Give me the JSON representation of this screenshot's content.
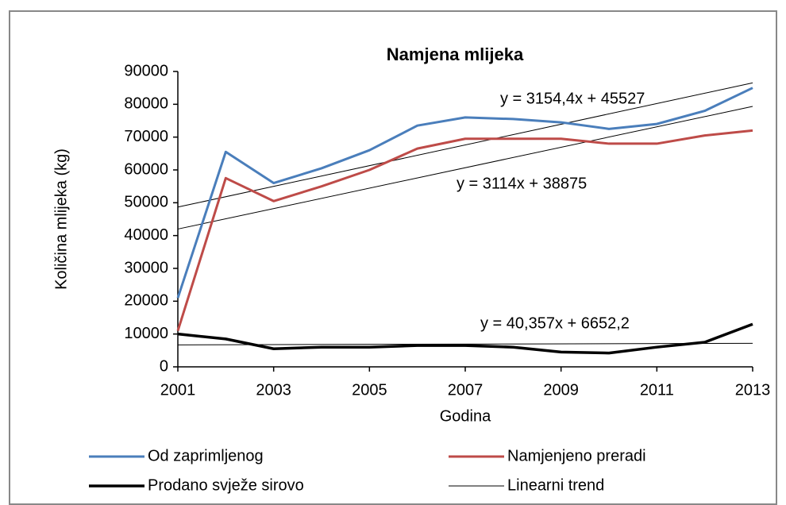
{
  "chart_data": {
    "type": "line",
    "title": "Namjena mlijeka",
    "y_label": "Količina mlijeka (kg)",
    "x_label": "Godina",
    "x": [
      2001,
      2002,
      2003,
      2004,
      2005,
      2006,
      2007,
      2008,
      2009,
      2010,
      2011,
      2012,
      2013
    ],
    "xlim": [
      2001,
      2013
    ],
    "xticks": [
      2001,
      2003,
      2005,
      2007,
      2009,
      2011,
      2013
    ],
    "ylim": [
      0,
      90000
    ],
    "yticks": [
      0,
      10000,
      20000,
      30000,
      40000,
      50000,
      60000,
      70000,
      80000,
      90000
    ],
    "series": [
      {
        "name": "Od zaprimljenog",
        "color": "#4a7ebb",
        "width": 3,
        "values": [
          21000,
          65500,
          56000,
          60500,
          66000,
          73500,
          76000,
          75500,
          74500,
          72500,
          74000,
          78000,
          85000
        ]
      },
      {
        "name": "Namjenjeno preradi",
        "color": "#be4b48",
        "width": 3,
        "values": [
          11000,
          57500,
          50500,
          55000,
          60000,
          66500,
          69500,
          69500,
          69500,
          68000,
          68000,
          70500,
          72000
        ]
      },
      {
        "name": "Prodano svježe sirovo",
        "color": "#000000",
        "width": 3.5,
        "values": [
          10000,
          8500,
          5500,
          6000,
          6000,
          6500,
          6500,
          6000,
          4500,
          4200,
          6000,
          7500,
          13000
        ]
      },
      {
        "name": "Linearni trend",
        "color": "#000000",
        "width": 1
      }
    ],
    "trend_lines": [
      {
        "equation": "y = 3154,4x + 45527",
        "values": [
          48681,
          86534
        ]
      },
      {
        "equation": "y = 3114x + 38875",
        "values": [
          41989,
          79357
        ]
      },
      {
        "equation": "y = 40,357x + 6652,2",
        "values": [
          6693,
          7177
        ]
      }
    ]
  }
}
